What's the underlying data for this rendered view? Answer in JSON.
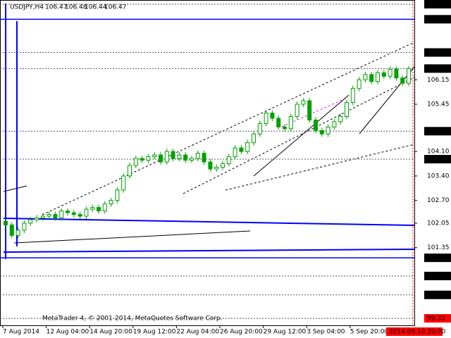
{
  "header": {
    "symbol": "USDJPY,H4",
    "ohlc": [
      106.47,
      106.48,
      106.44,
      106.47
    ]
  },
  "copyright": "MetaTrader 4, © 2001-2014, MetaQuotes Software Corp.",
  "cursor_label": "2014.09.10 20:00",
  "chart_data": {
    "type": "candlestick",
    "categories": [
      "7 Aug 2014",
      null,
      null,
      null,
      null,
      null,
      null,
      "12 Aug 04:00",
      null,
      null,
      null,
      null,
      null,
      null,
      "14 Aug 20:00",
      null,
      null,
      null,
      null,
      null,
      null,
      "19 Aug 12:00",
      null,
      null,
      null,
      null,
      null,
      null,
      "22 Aug 04:00",
      null,
      null,
      null,
      null,
      null,
      null,
      "26 Aug 20:00",
      null,
      null,
      null,
      null,
      null,
      null,
      "29 Aug 12:00",
      null,
      null,
      null,
      null,
      null,
      null,
      "3 Sep 04:00",
      null,
      null,
      null,
      null,
      null,
      null,
      "5 Sep 20:00",
      null,
      null,
      null,
      null,
      null,
      null,
      null,
      null,
      null
    ],
    "open": [
      102.1,
      102.0,
      101.7,
      101.85,
      102.05,
      102.15,
      102.2,
      102.25,
      102.3,
      102.2,
      102.4,
      102.35,
      102.3,
      102.25,
      102.45,
      102.5,
      102.4,
      102.6,
      102.7,
      103.0,
      103.4,
      103.7,
      103.9,
      103.85,
      103.95,
      104.0,
      103.8,
      104.1,
      103.9,
      104.0,
      103.85,
      103.9,
      104.05,
      103.8,
      103.6,
      103.65,
      103.75,
      103.95,
      104.2,
      104.1,
      104.35,
      104.6,
      104.9,
      105.2,
      105.05,
      104.8,
      104.75,
      105.1,
      105.45,
      105.55,
      105.0,
      104.7,
      104.6,
      104.8,
      104.95,
      105.1,
      105.5,
      105.9,
      106.15,
      106.3,
      106.1,
      106.35,
      106.25,
      106.45,
      106.2,
      106.05
    ],
    "high": [
      102.18,
      102.08,
      101.93,
      102.13,
      102.23,
      102.28,
      102.33,
      102.38,
      102.38,
      102.48,
      102.48,
      102.43,
      102.38,
      102.53,
      102.58,
      102.58,
      102.68,
      102.78,
      103.08,
      103.48,
      103.78,
      103.98,
      103.98,
      104.03,
      104.08,
      104.08,
      104.18,
      104.18,
      104.08,
      104.08,
      103.98,
      104.13,
      104.13,
      103.88,
      103.73,
      103.83,
      104.03,
      104.28,
      104.28,
      104.43,
      104.68,
      104.98,
      105.28,
      105.28,
      105.13,
      104.88,
      105.18,
      105.53,
      105.63,
      105.63,
      105.08,
      104.78,
      104.88,
      105.03,
      105.18,
      105.58,
      105.98,
      106.23,
      106.38,
      106.38,
      106.43,
      106.43,
      106.53,
      106.53,
      106.28,
      106.55
    ],
    "low": [
      101.92,
      101.62,
      101.62,
      101.77,
      101.97,
      102.07,
      102.12,
      102.17,
      102.12,
      102.12,
      102.27,
      102.22,
      102.17,
      102.17,
      102.37,
      102.32,
      102.32,
      102.52,
      102.62,
      102.92,
      103.32,
      103.62,
      103.77,
      103.77,
      103.87,
      103.72,
      103.72,
      103.82,
      103.82,
      103.77,
      103.77,
      103.82,
      103.72,
      103.52,
      103.52,
      103.57,
      103.67,
      103.87,
      104.02,
      104.02,
      104.27,
      104.52,
      104.82,
      104.97,
      104.72,
      104.67,
      104.67,
      105.02,
      105.37,
      104.92,
      104.62,
      104.52,
      104.52,
      104.72,
      104.87,
      105.02,
      105.42,
      105.82,
      106.07,
      106.02,
      106.02,
      106.17,
      106.17,
      106.12,
      105.97,
      105.97
    ],
    "close": [
      102.0,
      101.7,
      101.85,
      102.05,
      102.15,
      102.2,
      102.25,
      102.3,
      102.2,
      102.4,
      102.35,
      102.3,
      102.25,
      102.45,
      102.5,
      102.4,
      102.6,
      102.7,
      103.0,
      103.4,
      103.7,
      103.9,
      103.85,
      103.95,
      104.0,
      103.8,
      104.1,
      103.9,
      104.0,
      103.85,
      103.9,
      104.05,
      103.8,
      103.6,
      103.65,
      103.75,
      103.95,
      104.2,
      104.1,
      104.35,
      104.6,
      104.9,
      105.2,
      105.05,
      104.8,
      104.75,
      105.1,
      105.45,
      105.55,
      105.0,
      104.7,
      104.6,
      104.8,
      104.95,
      105.1,
      105.5,
      105.9,
      106.15,
      106.3,
      106.1,
      106.35,
      106.25,
      106.45,
      106.2,
      106.05,
      106.47
    ],
    "color": "#00a000",
    "ylim": [
      99.13,
      108.39
    ],
    "yticks": [
      106.15,
      105.45,
      {
        "value": 104.1,
        "label": "104.10"
      },
      {
        "value": 103.4,
        "label": "103.40"
      },
      {
        "value": 102.7,
        "label": "102.70"
      },
      102.05,
      101.35
    ],
    "levels": [
      {
        "value": 108.31,
        "label": "108.31",
        "color": "#000000"
      },
      {
        "value": 107.88,
        "label": "107.88",
        "color": "#0000ff"
      },
      {
        "value": 106.93,
        "label": "106.93",
        "color": "#000000"
      },
      {
        "value": 106.47,
        "label": "106.47",
        "color": "#000000"
      },
      {
        "value": 104.68,
        "label": "104.68",
        "color": "#000000"
      },
      {
        "value": 103.88,
        "label": "103.88",
        "color": "#000000"
      },
      {
        "value": 101.06,
        "label": "101.06",
        "color": "#0000ff"
      },
      {
        "value": 100.54,
        "label": "100.54",
        "color": "#000000"
      },
      {
        "value": 100.0,
        "label": "100.00",
        "color": "#000000"
      },
      {
        "value": 99.33,
        "label": "99.33",
        "color": "#ff0000"
      }
    ]
  }
}
